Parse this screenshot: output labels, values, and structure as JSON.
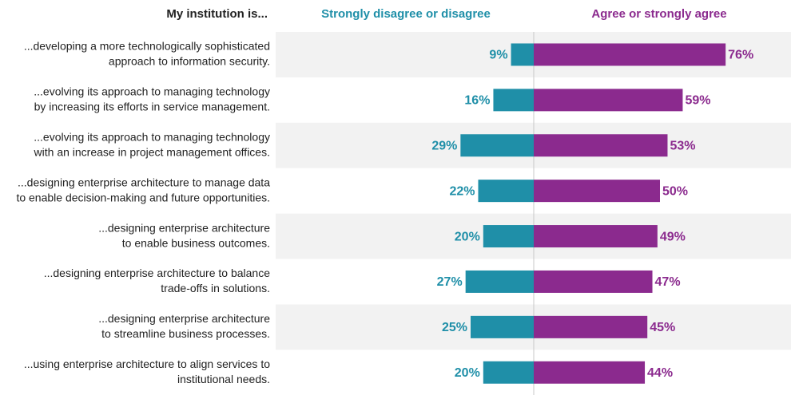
{
  "chart_data": {
    "type": "diverging_bar",
    "row_header": "My institution is...",
    "categories": [
      [
        "...developing a more technologically sophisticated",
        "approach to information security."
      ],
      [
        "...evolving its approach to managing technology",
        "by increasing its efforts in service management."
      ],
      [
        "...evolving its approach to managing technology",
        "with an increase in project management offices."
      ],
      [
        "...designing enterprise architecture to manage data",
        "to enable decision-making and future opportunities."
      ],
      [
        "...designing enterprise architecture",
        "to enable business outcomes."
      ],
      [
        "...designing enterprise architecture to balance",
        "trade-offs in solutions."
      ],
      [
        "...designing enterprise architecture",
        "to streamline business processes."
      ],
      [
        "...using enterprise architecture to align services to",
        "institutional needs."
      ]
    ],
    "series": [
      {
        "name": "Strongly disagree or disagree",
        "color": "#1f8fa8",
        "values": [
          9,
          16,
          29,
          22,
          20,
          27,
          25,
          20
        ],
        "value_labels": [
          "9%",
          "16%",
          "29%",
          "22%",
          "20%",
          "27%",
          "25%",
          "20%"
        ]
      },
      {
        "name": "Agree or strongly agree",
        "color": "#8b2a8e",
        "values": [
          76,
          59,
          53,
          50,
          49,
          47,
          45,
          44
        ],
        "value_labels": [
          "76%",
          "59%",
          "53%",
          "50%",
          "49%",
          "47%",
          "45%",
          "44%"
        ]
      }
    ]
  }
}
